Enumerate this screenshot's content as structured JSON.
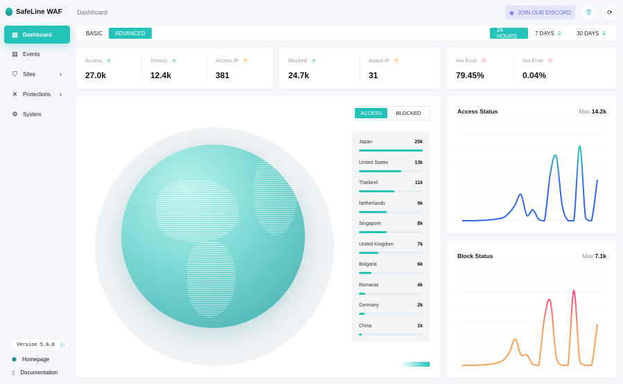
{
  "app": {
    "title": "SafeLine WAF"
  },
  "breadcrumb": "Dashboard",
  "header": {
    "discord_label": "JOIN OUR DISCORD",
    "discord_color": "#6470e0"
  },
  "sidebar": {
    "items": [
      {
        "label": "Dashboard",
        "icon": "bar-chart-icon",
        "active": true
      },
      {
        "label": "Events",
        "icon": "events-icon"
      },
      {
        "label": "Sites",
        "icon": "shield-icon",
        "has_submenu": true
      },
      {
        "label": "Protections",
        "icon": "tools-icon",
        "has_submenu": true
      },
      {
        "label": "System",
        "icon": "gear-icon"
      }
    ],
    "version": "Version 5.0.0",
    "links": [
      {
        "label": "Homepage",
        "icon": "home-shield-icon"
      },
      {
        "label": "Documentation",
        "icon": "document-icon"
      }
    ]
  },
  "mode_tabs": [
    {
      "label": "BASIC"
    },
    {
      "label": "ADVANCED",
      "active": true
    }
  ],
  "range_tabs": [
    {
      "label": "24 HOURS",
      "active": true
    },
    {
      "label": "7 DAYS"
    },
    {
      "label": "30 DAYS"
    }
  ],
  "stats": [
    {
      "label": "Access",
      "value": "27.0k",
      "icon": "user-icon"
    },
    {
      "label": "Visitors",
      "value": "12.4k",
      "icon": "users-icon"
    },
    {
      "label": "Access IP",
      "value": "381",
      "icon": "ip-icon"
    },
    {
      "label": "Blocked",
      "value": "24.7k",
      "icon": "block-icon"
    },
    {
      "label": "Attack IP",
      "value": "31",
      "icon": "ip-icon"
    },
    {
      "label": "4xx Error",
      "value": "79.45%",
      "icon": "alert-icon"
    },
    {
      "label": "5xx Error",
      "value": "0.04%",
      "icon": "alert-icon"
    }
  ],
  "map": {
    "toggle": [
      {
        "label": "ACCESS",
        "active": true
      },
      {
        "label": "BLOCKED"
      }
    ],
    "countries": [
      {
        "name": "Japan",
        "count": "25k",
        "progress": 1.0
      },
      {
        "name": "United States",
        "count": "13k",
        "progress": 0.66
      },
      {
        "name": "Thailand",
        "count": "11k",
        "progress": 0.55
      },
      {
        "name": "Netherlands",
        "count": "9k",
        "progress": 0.44
      },
      {
        "name": "Singapore",
        "count": "8k",
        "progress": 0.44
      },
      {
        "name": "United Kingdom",
        "count": "7k",
        "progress": 0.3
      },
      {
        "name": "Bulgaria",
        "count": "6k",
        "progress": 0.2
      },
      {
        "name": "Romania",
        "count": "4k",
        "progress": 0.1
      },
      {
        "name": "Germany",
        "count": "2k",
        "progress": 0.09
      },
      {
        "name": "China",
        "count": "1k",
        "progress": 0.04
      }
    ]
  },
  "chart_data": [
    {
      "type": "line",
      "title": "Access Status",
      "max_label": "Max",
      "max_value": "14.2k",
      "colors": [
        "#3366ee",
        "#22c7c0"
      ],
      "values": [
        0,
        0,
        0,
        0.05,
        0.1,
        0.2,
        0.35,
        0.6,
        1.5,
        3,
        5,
        1,
        2.1,
        0.3,
        0,
        9,
        12.2,
        3,
        0,
        0,
        14.2,
        0.5,
        0,
        7.8
      ]
    },
    {
      "type": "line",
      "title": "Block Status",
      "max_label": "Max",
      "max_value": "7.1k",
      "colors": [
        "#ffa052",
        "#ff3d7a"
      ],
      "values": [
        0,
        0,
        0,
        0.03,
        0.06,
        0.12,
        0.25,
        0.5,
        1.2,
        2.5,
        1.0,
        1.0,
        0.1,
        0,
        4.5,
        6.1,
        0.8,
        0,
        0,
        7.1,
        0.4,
        0,
        0,
        3.9
      ]
    }
  ]
}
